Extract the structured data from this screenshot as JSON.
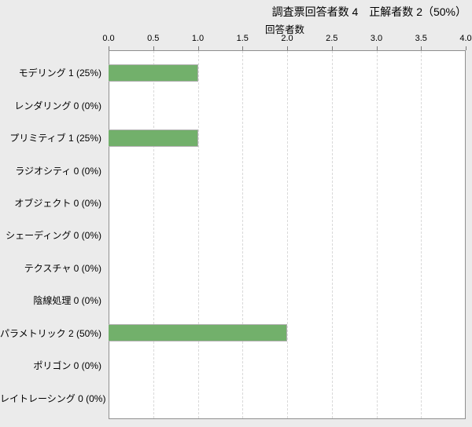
{
  "header": {
    "title": "調査票回答者数 4　正解者数 2（50%）"
  },
  "chart_data": {
    "type": "bar",
    "orientation": "horizontal",
    "title": "調査票回答者数 4　正解者数 2（50%）",
    "axis_label": "回答者数",
    "categories": [
      "モデリング",
      "レンダリング",
      "プリミティブ",
      "ラジオシティ",
      "オブジェクト",
      "シェーディング",
      "テクスチャ",
      "陰線処理",
      "パラメトリック",
      "ポリゴン",
      "レイトレーシング"
    ],
    "labels": [
      "モデリング 1 (25%)",
      "レンダリング 0 (0%)",
      "プリミティブ 1 (25%)",
      "ラジオシティ 0 (0%)",
      "オブジェクト 0 (0%)",
      "シェーディング 0 (0%)",
      "テクスチャ 0 (0%)",
      "陰線処理 0 (0%)",
      "パラメトリック 2 (50%)",
      "ポリゴン 0 (0%)",
      "レイトレーシング 0 (0%)"
    ],
    "values": [
      1,
      0,
      1,
      0,
      0,
      0,
      0,
      0,
      2,
      0,
      0
    ],
    "xticks": [
      "0.0",
      "0.5",
      "1.0",
      "1.5",
      "2.0",
      "2.5",
      "3.0",
      "3.5",
      "4.0"
    ],
    "xlim": [
      0,
      4
    ],
    "grid": "vertical-dashed",
    "legend": "none",
    "bar_color": "#72b06b"
  },
  "colors": {
    "background": "#ebebeb",
    "plot_background": "#ffffff",
    "plot_border": "#8f8f8f",
    "gridline": "#d9d9d9",
    "bar": "#72b06b",
    "bar_border": "#aeaeae",
    "text": "#000000"
  }
}
